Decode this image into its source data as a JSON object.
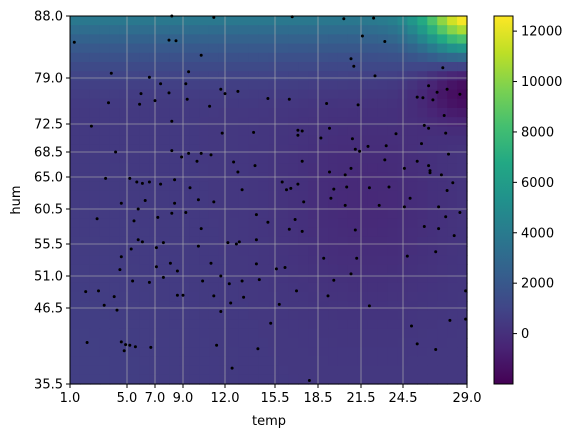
{
  "chart_data": {
    "type": "heatmap",
    "xlabel": "temp",
    "ylabel": "hum",
    "xlim": [
      1.0,
      29.0
    ],
    "ylim": [
      35.5,
      88.0
    ],
    "x_ticks": [
      1.0,
      5.0,
      7.0,
      9.0,
      12.0,
      15.5,
      18.5,
      21.5,
      24.5,
      29.0
    ],
    "x_tick_labels": [
      "1.0",
      "5.0",
      "7.0",
      "9.0",
      "12.0",
      "15.5",
      "18.5",
      "21.5",
      "24.5",
      "29.0"
    ],
    "y_ticks": [
      35.5,
      46.5,
      51.0,
      55.5,
      60.5,
      65.0,
      68.5,
      72.5,
      79.0,
      88.0
    ],
    "y_tick_labels": [
      "35.5",
      "46.5",
      "51.0",
      "55.5",
      "60.5",
      "65.0",
      "68.5",
      "72.5",
      "79.0",
      "88.0"
    ],
    "grid": true,
    "colormap": "viridis",
    "colorbar": {
      "min": -2000,
      "max": 12600,
      "ticks": [
        0,
        2000,
        4000,
        6000,
        8000,
        10000,
        12000
      ],
      "tick_labels": [
        "0",
        "2000",
        "4000",
        "6000",
        "8000",
        "10000",
        "12000"
      ]
    },
    "scatter_color": "#000000",
    "points": [
      [
        1.3,
        84.2
      ],
      [
        8.2,
        88.0
      ],
      [
        8.0,
        84.5
      ],
      [
        8.5,
        84.4
      ],
      [
        11.2,
        87.8
      ],
      [
        10.3,
        82.3
      ],
      [
        16.7,
        87.9
      ],
      [
        20.3,
        87.6
      ],
      [
        22.4,
        87.7
      ],
      [
        21.6,
        85.1
      ],
      [
        23.2,
        84.3
      ],
      [
        21.0,
        80.7
      ],
      [
        20.8,
        81.8
      ],
      [
        27.3,
        80.5
      ],
      [
        22.5,
        79.3
      ],
      [
        3.9,
        79.7
      ],
      [
        9.4,
        79.9
      ],
      [
        6.6,
        79.1
      ],
      [
        7.4,
        78.2
      ],
      [
        9.2,
        78.2
      ],
      [
        12.9,
        77.1
      ],
      [
        3.7,
        75.5
      ],
      [
        5.9,
        75.3
      ],
      [
        6.0,
        76.8
      ],
      [
        8.0,
        76.9
      ],
      [
        9.3,
        76.0
      ],
      [
        7.0,
        75.8
      ],
      [
        11.7,
        77.4
      ],
      [
        12.0,
        76.8
      ],
      [
        10.9,
        75.0
      ],
      [
        16.5,
        76.0
      ],
      [
        15.0,
        76.1
      ],
      [
        19.1,
        75.4
      ],
      [
        21.3,
        75.2
      ],
      [
        25.5,
        76.3
      ],
      [
        25.9,
        76.2
      ],
      [
        26.3,
        77.9
      ],
      [
        26.9,
        77.0
      ],
      [
        27.6,
        77.4
      ],
      [
        26.6,
        75.9
      ],
      [
        27.4,
        73.7
      ],
      [
        28.5,
        76.7
      ],
      [
        2.5,
        72.2
      ],
      [
        8.2,
        72.9
      ],
      [
        11.8,
        71.2
      ],
      [
        14.0,
        71.3
      ],
      [
        17.1,
        71.6
      ],
      [
        17.4,
        71.5
      ],
      [
        17.1,
        70.9
      ],
      [
        19.3,
        71.9
      ],
      [
        18.7,
        70.5
      ],
      [
        20.9,
        70.4
      ],
      [
        21.1,
        68.9
      ],
      [
        21.4,
        68.6
      ],
      [
        22.0,
        69.3
      ],
      [
        23.3,
        69.4
      ],
      [
        24.0,
        71.1
      ],
      [
        26.0,
        72.3
      ],
      [
        26.3,
        71.9
      ],
      [
        27.5,
        71.2
      ],
      [
        25.8,
        69.7
      ],
      [
        4.2,
        68.5
      ],
      [
        8.2,
        68.7
      ],
      [
        9.4,
        68.3
      ],
      [
        8.9,
        67.8
      ],
      [
        10.3,
        68.3
      ],
      [
        11.0,
        68.1
      ],
      [
        10.0,
        67.2
      ],
      [
        12.6,
        67.1
      ],
      [
        12.9,
        65.7
      ],
      [
        14.1,
        66.6
      ],
      [
        17.4,
        67.2
      ],
      [
        20.8,
        66.2
      ],
      [
        20.4,
        65.3
      ],
      [
        23.2,
        67.4
      ],
      [
        24.6,
        66.2
      ],
      [
        25.5,
        67.2
      ],
      [
        26.3,
        66.6
      ],
      [
        26.4,
        65.6
      ],
      [
        26.4,
        65.9
      ],
      [
        27.2,
        65.3
      ],
      [
        27.7,
        68.2
      ],
      [
        28.0,
        64.2
      ],
      [
        27.6,
        63.1
      ],
      [
        3.5,
        64.8
      ],
      [
        5.2,
        64.8
      ],
      [
        5.7,
        64.3
      ],
      [
        6.1,
        64.1
      ],
      [
        6.6,
        64.3
      ],
      [
        7.4,
        64.0
      ],
      [
        8.4,
        64.6
      ],
      [
        9.5,
        63.5
      ],
      [
        13.2,
        63.2
      ],
      [
        16.0,
        64.3
      ],
      [
        17.1,
        64.0
      ],
      [
        16.6,
        63.4
      ],
      [
        16.3,
        63.2
      ],
      [
        19.3,
        65.7
      ],
      [
        19.6,
        63.3
      ],
      [
        20.5,
        63.6
      ],
      [
        22.1,
        63.5
      ],
      [
        23.5,
        63.6
      ],
      [
        25.0,
        62.0
      ],
      [
        27.0,
        60.8
      ],
      [
        27.5,
        59.4
      ],
      [
        28.5,
        60.0
      ],
      [
        4.6,
        61.3
      ],
      [
        5.8,
        60.5
      ],
      [
        6.3,
        61.7
      ],
      [
        8.4,
        61.3
      ],
      [
        9.2,
        60.0
      ],
      [
        7.2,
        59.3
      ],
      [
        8.2,
        59.9
      ],
      [
        10.1,
        61.8
      ],
      [
        11.2,
        61.5
      ],
      [
        14.2,
        59.7
      ],
      [
        15.0,
        58.6
      ],
      [
        16.9,
        59.0
      ],
      [
        17.5,
        61.5
      ],
      [
        19.4,
        62.0
      ],
      [
        20.4,
        61.0
      ],
      [
        21.1,
        57.5
      ],
      [
        22.8,
        61.0
      ],
      [
        24.6,
        60.8
      ],
      [
        26.0,
        58.0
      ],
      [
        27.0,
        57.7
      ],
      [
        28.1,
        56.7
      ],
      [
        2.9,
        59.1
      ],
      [
        5.5,
        58.8
      ],
      [
        7.6,
        55.7
      ],
      [
        10.3,
        57.7
      ],
      [
        13.0,
        55.8
      ],
      [
        14.2,
        56.1
      ],
      [
        16.5,
        57.6
      ],
      [
        17.4,
        57.3
      ],
      [
        5.8,
        56.1
      ],
      [
        6.1,
        55.8
      ],
      [
        7.1,
        55.0
      ],
      [
        10.1,
        55.2
      ],
      [
        12.2,
        55.7
      ],
      [
        12.8,
        55.5
      ],
      [
        4.6,
        53.7
      ],
      [
        5.3,
        54.8
      ],
      [
        7.1,
        52.3
      ],
      [
        8.1,
        52.8
      ],
      [
        11.0,
        52.8
      ],
      [
        14.2,
        52.7
      ],
      [
        15.6,
        52.0
      ],
      [
        18.9,
        53.5
      ],
      [
        21.2,
        53.5
      ],
      [
        24.8,
        53.8
      ],
      [
        26.8,
        54.4
      ],
      [
        4.5,
        51.9
      ],
      [
        8.6,
        51.7
      ],
      [
        11.7,
        51.0
      ],
      [
        20.8,
        51.3
      ],
      [
        5.4,
        50.3
      ],
      [
        7.6,
        50.8
      ],
      [
        10.4,
        50.3
      ],
      [
        13.2,
        50.3
      ],
      [
        14.4,
        50.5
      ],
      [
        16.2,
        52.2
      ],
      [
        19.6,
        50.4
      ],
      [
        2.1,
        48.8
      ],
      [
        3.0,
        48.9
      ],
      [
        4.1,
        48.1
      ],
      [
        6.6,
        50.1
      ],
      [
        8.6,
        48.3
      ],
      [
        11.2,
        48.2
      ],
      [
        12.3,
        49.9
      ],
      [
        13.3,
        48.0
      ],
      [
        17.0,
        48.9
      ],
      [
        19.2,
        48.2
      ],
      [
        28.9,
        48.9
      ],
      [
        3.4,
        46.9
      ],
      [
        9.0,
        48.3
      ],
      [
        12.4,
        47.2
      ],
      [
        15.8,
        47.0
      ],
      [
        22.1,
        46.8
      ],
      [
        4.3,
        46.2
      ],
      [
        11.7,
        46.0
      ],
      [
        15.2,
        44.3
      ],
      [
        25.1,
        43.9
      ],
      [
        27.8,
        44.7
      ],
      [
        28.9,
        44.9
      ],
      [
        2.2,
        41.5
      ],
      [
        4.6,
        41.6
      ],
      [
        4.9,
        41.2
      ],
      [
        5.2,
        41.1
      ],
      [
        5.6,
        40.9
      ],
      [
        4.8,
        40.3
      ],
      [
        6.7,
        40.8
      ],
      [
        11.4,
        41.1
      ],
      [
        25.5,
        41.3
      ],
      [
        26.8,
        40.5
      ],
      [
        12.5,
        37.8
      ],
      [
        17.9,
        36.0
      ],
      [
        14.3,
        40.6
      ]
    ]
  }
}
